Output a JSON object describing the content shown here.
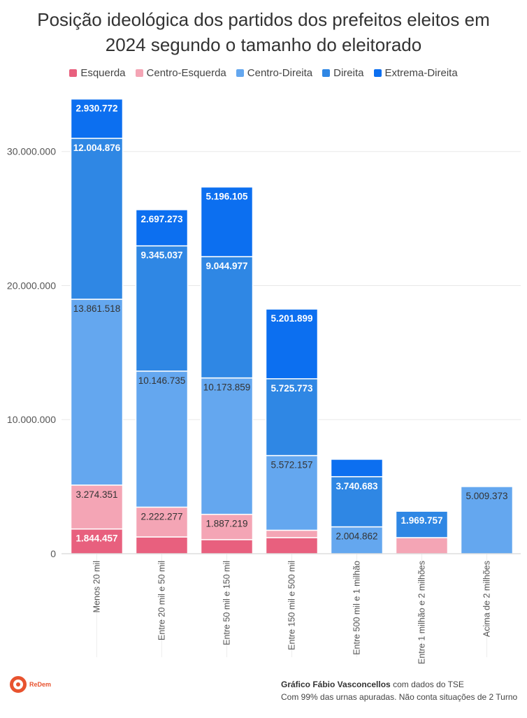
{
  "chart_data": {
    "type": "bar",
    "stacked": true,
    "title": "Posição ideológica dos partidos dos prefeitos eleitos em 2024 segundo o tamanho do eleitorado",
    "xlabel": "",
    "ylabel": "",
    "ylim": [
      0,
      34000000
    ],
    "yticks": [
      0,
      10000000,
      20000000,
      30000000
    ],
    "ytick_labels": [
      "0",
      "10.000.000",
      "20.000.000",
      "30.000.000"
    ],
    "legend_position": "top-center",
    "categories": [
      "Menos 20 mil",
      "Entre 20 mil e 50 mil",
      "Entre 50 mil e 150 mil",
      "Entre 150 mil e 500 mil",
      "Entre 500 mil e 1 milhão",
      "Entre 1 milhão e 2 milhões",
      "Acima de 2 milhões"
    ],
    "series": [
      {
        "name": "Esquerda",
        "color": "#e8607e",
        "values": [
          1844457,
          1250000,
          1050000,
          1200000,
          0,
          0,
          0
        ],
        "labels": [
          "1.844.457",
          "",
          "",
          "",
          "",
          "",
          ""
        ]
      },
      {
        "name": "Centro-Esquerda",
        "color": "#f4a5b5",
        "values": [
          3274351,
          2222277,
          1887219,
          550000,
          0,
          1200000,
          0
        ],
        "labels": [
          "3.274.351",
          "2.222.277",
          "1.887.219",
          "",
          "",
          "",
          ""
        ]
      },
      {
        "name": "Centro-Direita",
        "color": "#64a7ef",
        "values": [
          13861518,
          10146735,
          10173859,
          5572157,
          2004862,
          0,
          5009373
        ],
        "labels": [
          "13.861.518",
          "10.146.735",
          "10.173.859",
          "5.572.157",
          "2.004.862",
          "",
          "5.009.373"
        ]
      },
      {
        "name": "Direita",
        "color": "#2f87e4",
        "values": [
          12004876,
          9345037,
          9044977,
          5725773,
          3740683,
          1969757,
          0
        ],
        "labels": [
          "12.004.876",
          "9.345.037",
          "9.044.977",
          "5.725.773",
          "3.740.683",
          "1.969.757",
          ""
        ]
      },
      {
        "name": "Extrema-Direita",
        "color": "#0c6ff0",
        "values": [
          2930772,
          2697273,
          5196105,
          5201899,
          1300000,
          0,
          0
        ],
        "labels": [
          "2.930.772",
          "2.697.273",
          "5.196.105",
          "5.201.899",
          "",
          "",
          ""
        ]
      }
    ]
  },
  "footer": {
    "logo_text": "ReDem",
    "credit_bold": "Gráfico Fábio Vasconcellos",
    "credit_rest": " com dados do TSE",
    "note": "Com 99% das urnas apuradas. Não conta situações de 2 Turno"
  }
}
